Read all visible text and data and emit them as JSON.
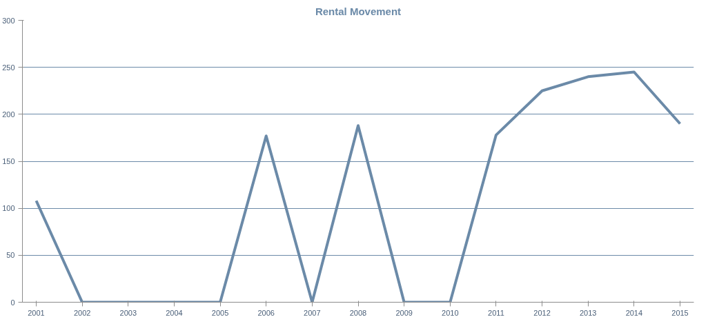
{
  "chart_data": {
    "type": "line",
    "title": "Rental Movement",
    "categories": [
      "2001",
      "2002",
      "2003",
      "2004",
      "2005",
      "2006",
      "2007",
      "2008",
      "2009",
      "2010",
      "2011",
      "2012",
      "2013",
      "2014",
      "2015"
    ],
    "series": [
      {
        "color": "#6b8aa8",
        "values": [
          108,
          0,
          0,
          0,
          0,
          177,
          0,
          188,
          0,
          0,
          178,
          225,
          240,
          245,
          190
        ]
      }
    ],
    "ylim": [
      0,
      300
    ],
    "yticks": [
      0,
      50,
      100,
      150,
      200,
      250,
      300
    ],
    "grid": "y",
    "marker": "none",
    "line_style": "solid"
  }
}
